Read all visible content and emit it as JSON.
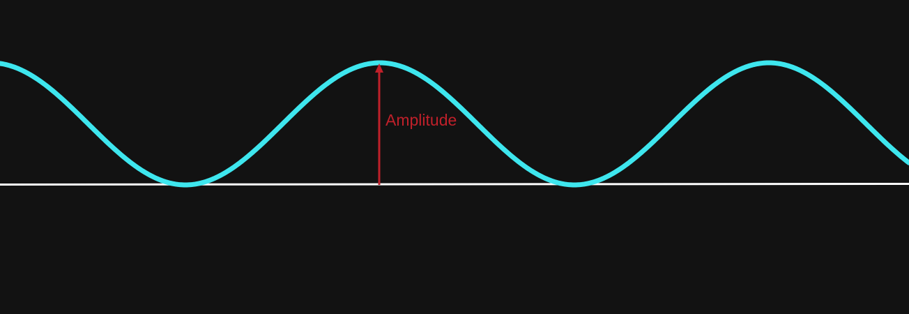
{
  "diagram": {
    "wave_color": "#3ee6ee",
    "baseline_color": "#ffffff",
    "annotation_color": "#c0202a",
    "background_color": "#121212",
    "annotation_label": "Amplitude"
  }
}
